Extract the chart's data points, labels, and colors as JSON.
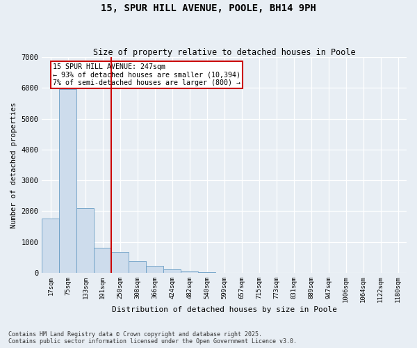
{
  "title_line1": "15, SPUR HILL AVENUE, POOLE, BH14 9PH",
  "title_line2": "Size of property relative to detached houses in Poole",
  "xlabel": "Distribution of detached houses by size in Poole",
  "ylabel": "Number of detached properties",
  "bar_color": "#cddcec",
  "bar_edge_color": "#6a9ec5",
  "categories": [
    "17sqm",
    "75sqm",
    "133sqm",
    "191sqm",
    "250sqm",
    "308sqm",
    "366sqm",
    "424sqm",
    "482sqm",
    "540sqm",
    "599sqm",
    "657sqm",
    "715sqm",
    "773sqm",
    "831sqm",
    "889sqm",
    "947sqm",
    "1006sqm",
    "1064sqm",
    "1122sqm",
    "1180sqm"
  ],
  "values": [
    1750,
    5950,
    2100,
    820,
    680,
    380,
    220,
    110,
    50,
    20,
    8,
    3,
    1,
    0,
    0,
    0,
    0,
    0,
    0,
    0,
    0
  ],
  "vline_index": 4,
  "annotation_line1": "15 SPUR HILL AVENUE: 247sqm",
  "annotation_line2": "← 93% of detached houses are smaller (10,394)",
  "annotation_line3": "7% of semi-detached houses are larger (800) →",
  "annotation_box_color": "#ffffff",
  "annotation_box_edge": "#cc0000",
  "vline_color": "#cc0000",
  "ylim": [
    0,
    7000
  ],
  "yticks": [
    0,
    1000,
    2000,
    3000,
    4000,
    5000,
    6000,
    7000
  ],
  "background_color": "#e8eef4",
  "grid_color": "#ffffff",
  "footer_line1": "Contains HM Land Registry data © Crown copyright and database right 2025.",
  "footer_line2": "Contains public sector information licensed under the Open Government Licence v3.0."
}
